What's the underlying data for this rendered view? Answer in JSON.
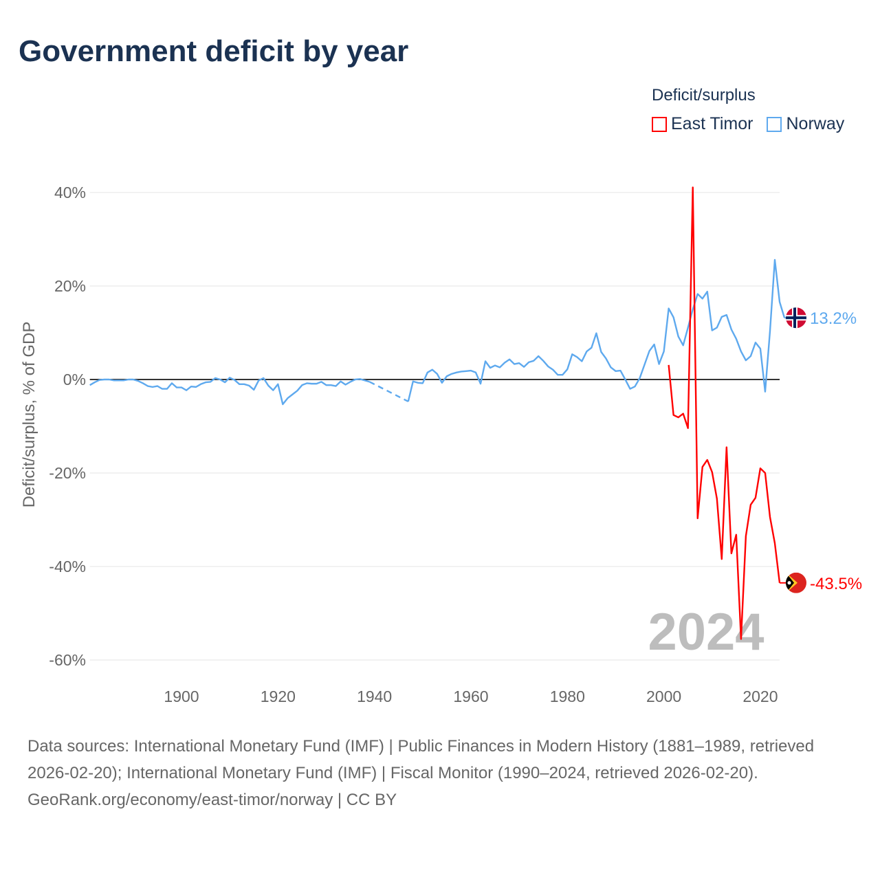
{
  "title": "Government deficit by year",
  "legend": {
    "title": "Deficit/surplus"
  },
  "year_label": "2024",
  "footer": {
    "sources": "Data sources: International Monetary Fund (IMF) | Public Finances in Modern History (1881–1989, retrieved 2026-02-20); International Monetary Fund (IMF) | Fiscal Monitor (1990–2024, retrieved 2026-02-20).",
    "credit": "GeoRank.org/economy/east-timor/norway | CC BY"
  },
  "chart_data": {
    "type": "line",
    "title": "Government deficit by year",
    "xlabel": "",
    "ylabel": "Deficit/surplus, % of GDP",
    "xlim": [
      1881,
      2024
    ],
    "ylim": [
      -60,
      40
    ],
    "yticks": [
      40,
      20,
      0,
      -20,
      -40,
      -60
    ],
    "ytick_labels": [
      "40%",
      "20%",
      "0%",
      "-20%",
      "-40%",
      "-60%"
    ],
    "xticks": [
      1900,
      1920,
      1940,
      1960,
      1980,
      2000,
      2020
    ],
    "xtick_labels": [
      "1900",
      "1920",
      "1940",
      "1960",
      "1980",
      "2000",
      "2020"
    ],
    "grid": true,
    "legend_position": "top-right",
    "series": [
      {
        "name": "East Timor",
        "color": "#ff0000",
        "end_label": "-43.5%",
        "flag": "east-timor-flag",
        "start_year": 2001,
        "values": [
          3.1,
          -7.6,
          -8.1,
          -7.3,
          -10.4,
          41.1,
          -29.7,
          -18.7,
          -17.2,
          -19.8,
          -25.5,
          -38.4,
          -14.5,
          -37.2,
          -33.2,
          -55.5,
          -33.5,
          -26.8,
          -25.3,
          -19.0,
          -20.0,
          -29.4,
          -35.0,
          -43.5
        ]
      },
      {
        "name": "Norway",
        "color": "#5ea9ee",
        "end_label": "13.2%",
        "flag": "norway-flag",
        "start_year": 1881,
        "values": [
          -1.2,
          -0.6,
          -0.1,
          0,
          0,
          -0.2,
          -0.2,
          -0.2,
          0,
          0,
          -0.3,
          -0.8,
          -1.4,
          -1.6,
          -1.4,
          -2.0,
          -2.0,
          -0.8,
          -1.7,
          -1.7,
          -2.3,
          -1.5,
          -1.6,
          -1.0,
          -0.6,
          -0.5,
          0.3,
          0,
          -0.6,
          0.4,
          -0.1,
          -1.0,
          -1.0,
          -1.3,
          -2.2,
          -0.2,
          0.3,
          -1.3,
          -2.3,
          -1.0,
          -5.3,
          -4.0,
          -3.2,
          -2.4,
          -1.2,
          -0.8,
          -0.9,
          -0.9,
          -0.5,
          -1.2,
          -1.2,
          -1.4,
          -0.4,
          -1.1,
          -0.5,
          0,
          0.1,
          -0.2,
          -0.5,
          null,
          null,
          null,
          null,
          null,
          null,
          null,
          -4.7,
          -0.4,
          -0.7,
          -0.8,
          1.5,
          2.1,
          1.2,
          -0.7,
          0.7,
          1.2,
          1.5,
          1.7,
          1.8,
          1.9,
          1.5,
          -0.9,
          3.9,
          2.5,
          3.0,
          2.6,
          3.6,
          4.3,
          3.3,
          3.5,
          2.7,
          3.7,
          4.0,
          5.0,
          4.0,
          2.8,
          2.1,
          1.0,
          1.0,
          2.2,
          5.4,
          4.8,
          3.9,
          6.0,
          6.8,
          9.9,
          5.9,
          4.5,
          2.6,
          1.8,
          1.9,
          0,
          -2.0,
          -1.5,
          0.3,
          3.2,
          6.1,
          7.5,
          3.3,
          6.0,
          15.2,
          13.3,
          9.2,
          7.3,
          11.1,
          15.0,
          18.3,
          17.3,
          18.8,
          10.5,
          11.1,
          13.4,
          13.8,
          10.7,
          8.7,
          6.0,
          4.1,
          5.0,
          7.9,
          6.6,
          -2.6,
          10.3,
          25.6,
          16.6,
          13.2
        ]
      }
    ]
  }
}
